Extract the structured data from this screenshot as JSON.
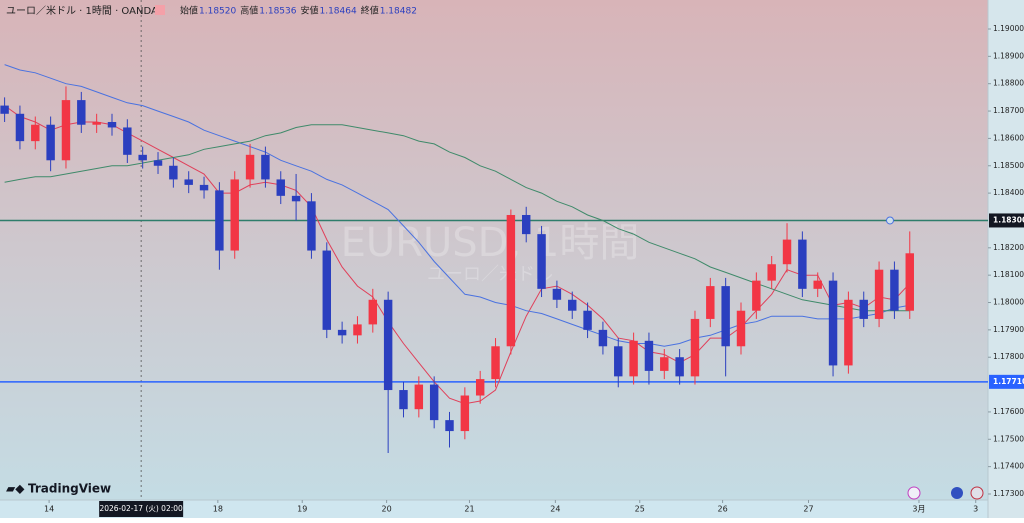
{
  "header": {
    "symbol": "ユーロ／米ドル · 1時間 · OANDA",
    "ohlc": [
      {
        "label": "始値",
        "value": "1.18520"
      },
      {
        "label": "高値",
        "value": "1.18536"
      },
      {
        "label": "安値",
        "value": "1.18464"
      },
      {
        "label": "終値",
        "value": "1.18482"
      }
    ],
    "watermark": "EURUSD, 1時間",
    "watermark_sub": "ユーロ／米ドル",
    "logo": "TradingView"
  },
  "chart_data": {
    "type": "candlestick",
    "up_color": "#f23645",
    "down_color": "#2b3fbf",
    "ohlc": [
      [
        1.1872,
        1.1875,
        1.1866,
        1.1869
      ],
      [
        1.1869,
        1.1872,
        1.1856,
        1.1859
      ],
      [
        1.1859,
        1.1868,
        1.1856,
        1.1865
      ],
      [
        1.1865,
        1.1868,
        1.1848,
        1.1852
      ],
      [
        1.1852,
        1.1879,
        1.1849,
        1.1874
      ],
      [
        1.1874,
        1.1877,
        1.1862,
        1.1865
      ],
      [
        1.1865,
        1.1869,
        1.1862,
        1.1866
      ],
      [
        1.1866,
        1.1869,
        1.1861,
        1.1864
      ],
      [
        1.1864,
        1.1867,
        1.1851,
        1.1854
      ],
      [
        1.1854,
        1.1857,
        1.1849,
        1.1852
      ],
      [
        1.1852,
        1.1855,
        1.1847,
        1.185
      ],
      [
        1.185,
        1.1853,
        1.1842,
        1.1845
      ],
      [
        1.1845,
        1.1848,
        1.184,
        1.1843
      ],
      [
        1.1843,
        1.1846,
        1.1838,
        1.1841
      ],
      [
        1.1841,
        1.1844,
        1.1812,
        1.1819
      ],
      [
        1.1819,
        1.1848,
        1.1816,
        1.1845
      ],
      [
        1.1845,
        1.1858,
        1.1842,
        1.1854
      ],
      [
        1.1854,
        1.1857,
        1.1842,
        1.1845
      ],
      [
        1.1845,
        1.1848,
        1.1836,
        1.1839
      ],
      [
        1.1839,
        1.1847,
        1.183,
        1.1837
      ],
      [
        1.1837,
        1.184,
        1.1816,
        1.1819
      ],
      [
        1.1819,
        1.1822,
        1.1787,
        1.179
      ],
      [
        1.179,
        1.1793,
        1.1785,
        1.1788
      ],
      [
        1.1788,
        1.1795,
        1.1785,
        1.1792
      ],
      [
        1.1792,
        1.1805,
        1.1789,
        1.1801
      ],
      [
        1.1801,
        1.1804,
        1.1745,
        1.1768
      ],
      [
        1.1768,
        1.1771,
        1.1758,
        1.1761
      ],
      [
        1.1761,
        1.1773,
        1.1758,
        1.177
      ],
      [
        1.177,
        1.1773,
        1.1754,
        1.1757
      ],
      [
        1.1757,
        1.176,
        1.1747,
        1.1753
      ],
      [
        1.1753,
        1.1769,
        1.175,
        1.1766
      ],
      [
        1.1766,
        1.1775,
        1.1763,
        1.1772
      ],
      [
        1.1772,
        1.1787,
        1.1769,
        1.1784
      ],
      [
        1.1784,
        1.1834,
        1.1781,
        1.1832
      ],
      [
        1.1832,
        1.1835,
        1.1822,
        1.1825
      ],
      [
        1.1825,
        1.1828,
        1.1802,
        1.1805
      ],
      [
        1.1805,
        1.1808,
        1.1798,
        1.1801
      ],
      [
        1.1801,
        1.1804,
        1.1794,
        1.1797
      ],
      [
        1.1797,
        1.18,
        1.1787,
        1.179
      ],
      [
        1.179,
        1.1793,
        1.1781,
        1.1784
      ],
      [
        1.1784,
        1.1787,
        1.1769,
        1.1773
      ],
      [
        1.1773,
        1.1789,
        1.177,
        1.1786
      ],
      [
        1.1786,
        1.1789,
        1.177,
        1.1775
      ],
      [
        1.1775,
        1.1783,
        1.1772,
        1.178
      ],
      [
        1.178,
        1.1783,
        1.177,
        1.1773
      ],
      [
        1.1773,
        1.1797,
        1.177,
        1.1794
      ],
      [
        1.1794,
        1.1809,
        1.1791,
        1.1806
      ],
      [
        1.1806,
        1.1809,
        1.1773,
        1.1784
      ],
      [
        1.1784,
        1.18,
        1.1781,
        1.1797
      ],
      [
        1.1797,
        1.1811,
        1.1794,
        1.1808
      ],
      [
        1.1808,
        1.1817,
        1.1805,
        1.1814
      ],
      [
        1.1814,
        1.1829,
        1.1811,
        1.1823
      ],
      [
        1.1823,
        1.1826,
        1.1802,
        1.1805
      ],
      [
        1.1805,
        1.1811,
        1.1802,
        1.1808
      ],
      [
        1.1808,
        1.1811,
        1.1773,
        1.1777
      ],
      [
        1.1777,
        1.1804,
        1.1774,
        1.1801
      ],
      [
        1.1801,
        1.1804,
        1.1791,
        1.1794
      ],
      [
        1.1794,
        1.1815,
        1.1791,
        1.1812
      ],
      [
        1.1812,
        1.1815,
        1.1794,
        1.1797
      ],
      [
        1.1797,
        1.1826,
        1.1794,
        1.1818
      ]
    ],
    "series": [
      {
        "color": "#e0405a",
        "values": [
          1.1872,
          1.1868,
          1.1866,
          1.1863,
          1.1865,
          1.1866,
          1.1866,
          1.1865,
          1.1862,
          1.1859,
          1.1856,
          1.1853,
          1.185,
          1.1847,
          1.184,
          1.184,
          1.1843,
          1.1844,
          1.1843,
          1.1841,
          1.1835,
          1.1823,
          1.1813,
          1.1806,
          1.1802,
          1.1793,
          1.1785,
          1.1778,
          1.1771,
          1.1765,
          1.1763,
          1.1764,
          1.1768,
          1.1782,
          1.1795,
          1.1805,
          1.1806,
          1.1803,
          1.1799,
          1.1794,
          1.1787,
          1.1786,
          1.1782,
          1.1781,
          1.1778,
          1.1781,
          1.1787,
          1.1787,
          1.1791,
          1.1797,
          1.1803,
          1.1812,
          1.181,
          1.181,
          1.1799,
          1.18,
          1.1798,
          1.1802,
          1.1801,
          1.1807
        ]
      },
      {
        "color": "#4a72e0",
        "values": [
          1.1887,
          1.1885,
          1.1884,
          1.1882,
          1.188,
          1.1879,
          1.1877,
          1.1875,
          1.1873,
          1.1872,
          1.187,
          1.1868,
          1.1866,
          1.1863,
          1.1861,
          1.1859,
          1.1857,
          1.1855,
          1.1852,
          1.185,
          1.1848,
          1.1845,
          1.1843,
          1.184,
          1.1837,
          1.1834,
          1.1828,
          1.1822,
          1.1815,
          1.1809,
          1.1803,
          1.1802,
          1.18,
          1.1799,
          1.1797,
          1.1796,
          1.1794,
          1.1792,
          1.179,
          1.1788,
          1.1786,
          1.1785,
          1.1785,
          1.1784,
          1.1785,
          1.1787,
          1.1788,
          1.179,
          1.1792,
          1.1793,
          1.1795,
          1.1795,
          1.1795,
          1.1794,
          1.1794,
          1.1794,
          1.1795,
          1.1796,
          1.1798,
          1.1799
        ]
      },
      {
        "color": "#3f8a6a",
        "values": [
          1.1844,
          1.1845,
          1.1846,
          1.1846,
          1.1847,
          1.1848,
          1.1849,
          1.185,
          1.185,
          1.1851,
          1.1852,
          1.1853,
          1.1854,
          1.1856,
          1.1857,
          1.1858,
          1.1859,
          1.1861,
          1.1862,
          1.1864,
          1.1865,
          1.1865,
          1.1865,
          1.1864,
          1.1863,
          1.1862,
          1.1861,
          1.1859,
          1.1858,
          1.1855,
          1.1853,
          1.185,
          1.1848,
          1.1845,
          1.1842,
          1.184,
          1.1837,
          1.1835,
          1.1832,
          1.183,
          1.1827,
          1.1825,
          1.1822,
          1.182,
          1.1818,
          1.1816,
          1.1813,
          1.1811,
          1.1809,
          1.1807,
          1.1805,
          1.1803,
          1.1801,
          1.18,
          1.1799,
          1.1798,
          1.1797,
          1.1797,
          1.1797,
          1.1797
        ]
      }
    ],
    "hlines": [
      {
        "value": 1.183,
        "label": "1.18300",
        "color": "#2e7d6b"
      },
      {
        "value": 1.1771,
        "label": "1.17710",
        "color": "#2962ff"
      }
    ],
    "ylim": [
      1.17278,
      1.19106
    ],
    "yticks": [
      {
        "value": 1.19,
        "label": "1.19000"
      },
      {
        "value": 1.189,
        "label": "1.18900"
      },
      {
        "value": 1.188,
        "label": "1.18800"
      },
      {
        "value": 1.187,
        "label": "1.18700"
      },
      {
        "value": 1.186,
        "label": "1.18600"
      },
      {
        "value": 1.185,
        "label": "1.18500"
      },
      {
        "value": 1.184,
        "label": "1.18400"
      },
      {
        "value": 1.182,
        "label": "1.18200"
      },
      {
        "value": 1.181,
        "label": "1.18100"
      },
      {
        "value": 1.18,
        "label": "1.18000"
      },
      {
        "value": 1.179,
        "label": "1.17900"
      },
      {
        "value": 1.178,
        "label": "1.17800"
      },
      {
        "value": 1.176,
        "label": "1.17600"
      },
      {
        "value": 1.175,
        "label": "1.17500"
      },
      {
        "value": 1.174,
        "label": "1.17400"
      },
      {
        "value": 1.173,
        "label": "1.17300"
      }
    ],
    "xlim": [
      -0.3,
      64.1
    ],
    "xticks": [
      {
        "value": 2.9,
        "label": "14"
      },
      {
        "value": 13.9,
        "label": "18"
      },
      {
        "value": 19.4,
        "label": "19"
      },
      {
        "value": 24.9,
        "label": "20"
      },
      {
        "value": 30.3,
        "label": "21"
      },
      {
        "value": 35.9,
        "label": "24"
      },
      {
        "value": 41.4,
        "label": "25"
      },
      {
        "value": 46.8,
        "label": "26"
      },
      {
        "value": 52.4,
        "label": "27"
      },
      {
        "value": 59.6,
        "label": "3月"
      },
      {
        "value": 63.3,
        "label": "3"
      }
    ],
    "crosshair": {
      "value": 8.9,
      "label": "2026-02-17 (火)  02:00"
    }
  }
}
